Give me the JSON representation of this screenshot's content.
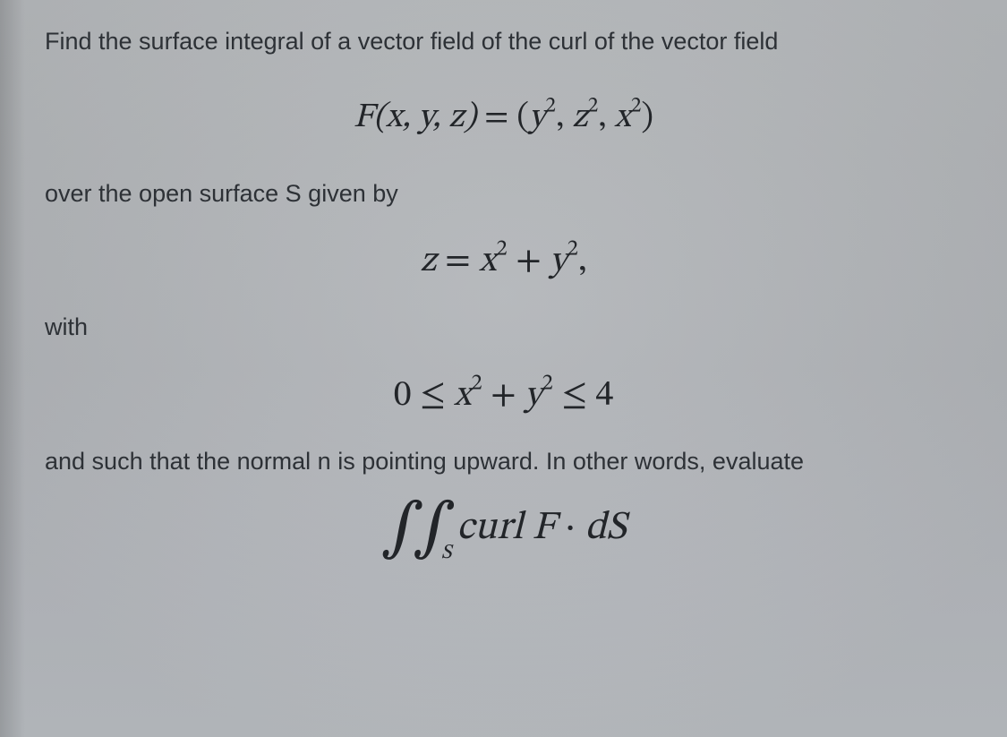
{
  "colors": {
    "background_top": "#b8bbbe",
    "background_bottom": "#bbbfc3",
    "prose_text": "#2d3136",
    "math_text": "#222529"
  },
  "typography": {
    "prose_family": "Segoe UI / Helvetica Neue / Arial",
    "prose_size_pt": 20,
    "math_family": "Cambria Math / STIX / Latin Modern serif",
    "math_size_pt": 29
  },
  "text": {
    "line1": "Find the surface integral of a vector field of the curl of the vector field",
    "line2": "over the open surface S given by",
    "with": "with",
    "line3": "and such that the normal n is pointing upward. In other words, evaluate"
  },
  "math": {
    "eq1_lhs_F": "F",
    "eq1_lhs_args": "(x, y, z)",
    "eq1_eq": " = ",
    "eq1_rhs_open": "(",
    "eq1_rhs_y": "y",
    "eq1_rhs_c1": ", ",
    "eq1_rhs_z": "z",
    "eq1_rhs_c2": ", ",
    "eq1_rhs_x": "x",
    "eq1_rhs_close": ")",
    "eq1_pow": "2",
    "eq2_z": "z",
    "eq2_eq": " = ",
    "eq2_x": "x",
    "eq2_plus": " + ",
    "eq2_y": "y",
    "eq2_comma": ",",
    "eq2_pow": "2",
    "eq3_zero": "0",
    "eq3_le1": " ≤ ",
    "eq3_x": "x",
    "eq3_plus": " + ",
    "eq3_y": "y",
    "eq3_le2": " ≤ ",
    "eq3_four": "4",
    "eq3_pow": "2",
    "eq4_int": "∫∫",
    "eq4_sub": "S",
    "eq4_curl": "curl",
    "eq4_sp": " ",
    "eq4_F": "F",
    "eq4_dot": " · ",
    "eq4_dS": "dS"
  }
}
